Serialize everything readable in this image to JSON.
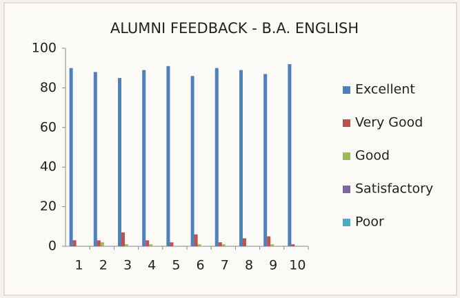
{
  "chart_data": {
    "type": "bar",
    "title": "ALUMNI FEEDBACK - B.A. ENGLISH",
    "categories": [
      "1",
      "2",
      "3",
      "4",
      "5",
      "6",
      "7",
      "8",
      "9",
      "10"
    ],
    "series": [
      {
        "name": "Excellent",
        "color": "#4f81bd",
        "values": [
          90,
          88,
          85,
          89,
          91,
          86,
          90,
          89,
          87,
          92
        ]
      },
      {
        "name": "Very Good",
        "color": "#c0504d",
        "values": [
          3,
          3,
          7,
          3,
          2,
          6,
          2,
          4,
          5,
          1
        ]
      },
      {
        "name": "Good",
        "color": "#9bbb59",
        "values": [
          0,
          2,
          1,
          1,
          0,
          1,
          1,
          0,
          1,
          0
        ]
      },
      {
        "name": "Satisfactory",
        "color": "#8064a2",
        "values": [
          0,
          0,
          0,
          0,
          0,
          0,
          0,
          0,
          0,
          0
        ]
      },
      {
        "name": "Poor",
        "color": "#4bacc6",
        "values": [
          0,
          0,
          0,
          0,
          0,
          0,
          0,
          0,
          0,
          0
        ]
      }
    ],
    "ylim": [
      0,
      100
    ],
    "yticks": [
      0,
      20,
      40,
      60,
      80,
      100
    ],
    "legend": "right"
  }
}
